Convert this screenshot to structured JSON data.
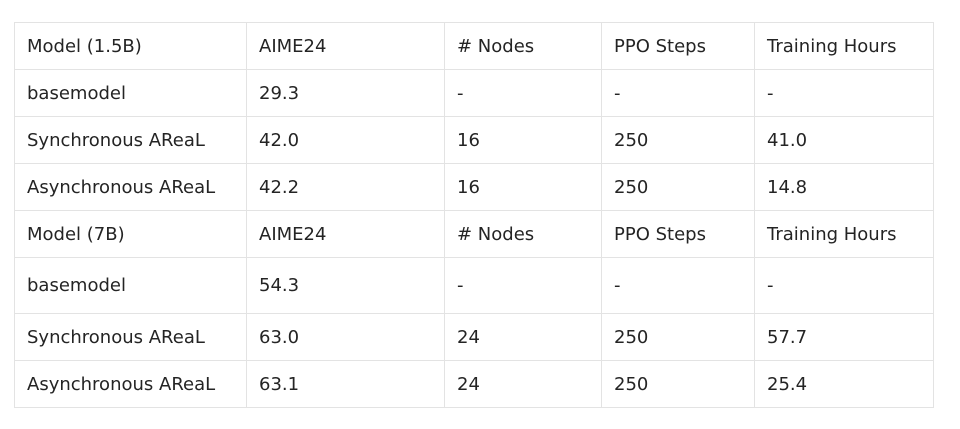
{
  "table": {
    "rows": [
      [
        "Model (1.5B)",
        "AIME24",
        "# Nodes",
        "PPO Steps",
        "Training Hours"
      ],
      [
        "basemodel",
        "29.3",
        "-",
        "-",
        "-"
      ],
      [
        "Synchronous AReaL",
        "42.0",
        "16",
        "250",
        "41.0"
      ],
      [
        "Asynchronous AReaL",
        "42.2",
        "16",
        "250",
        "14.8"
      ],
      [
        "Model (7B)",
        "AIME24",
        "# Nodes",
        "PPO Steps",
        "Training Hours"
      ],
      [
        "basemodel",
        "54.3",
        "-",
        "-",
        "-"
      ],
      [
        "Synchronous AReaL",
        "63.0",
        "24",
        "250",
        "57.7"
      ],
      [
        "Asynchronous AReaL",
        "63.1",
        "24",
        "250",
        "25.4"
      ]
    ]
  }
}
